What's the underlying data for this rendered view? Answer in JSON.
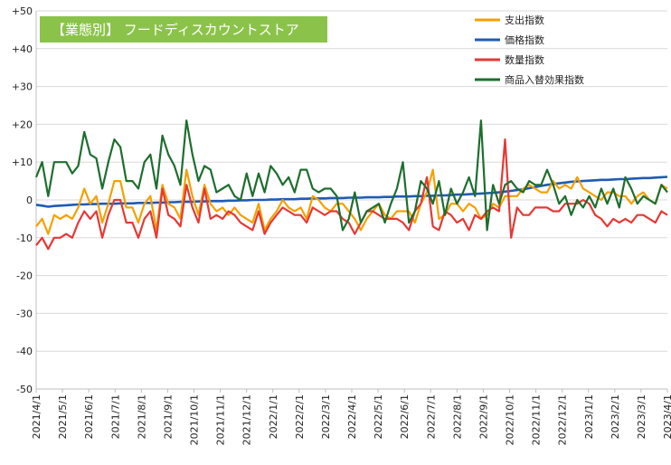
{
  "title_badge": {
    "text": "【業態別】 フードディスカウントストア",
    "bg_color": "#8BC34A",
    "text_color": "#ffffff"
  },
  "chart_data": {
    "type": "line",
    "title": "【業態別】 フードディスカウントストア",
    "ylim": [
      -50,
      50
    ],
    "y_ticks": [
      50,
      40,
      30,
      20,
      10,
      0,
      -10,
      -20,
      -30,
      -40,
      -50
    ],
    "y_tick_labels": [
      "+50",
      "+40",
      "+30",
      "+20",
      "+10",
      "0",
      "-10",
      "-20",
      "-30",
      "-40",
      "-50"
    ],
    "x_tick_labels": [
      "2021/4/1",
      "2021/5/1",
      "2021/6/1",
      "2021/7/1",
      "2021/8/1",
      "2021/9/1",
      "2021/10/1",
      "2021/11/1",
      "2021/12/1",
      "2022/1/1",
      "2022/2/1",
      "2022/3/1",
      "2022/4/1",
      "2022/5/1",
      "2022/6/1",
      "2022/7/1",
      "2022/8/1",
      "2022/9/1",
      "2022/10/1",
      "2022/11/1",
      "2022/12/1",
      "2023/1/1",
      "2023/2/1",
      "2023/3/1",
      "2023/4/1"
    ],
    "x_unit": "weekly, 2021-04 to 2023-04",
    "grid": true,
    "legend_position": "top-right",
    "series": [
      {
        "name": "支出指数",
        "color": "#F5A000",
        "values": [
          -7,
          -5,
          -9,
          -4,
          -5,
          -4,
          -5,
          -2,
          3,
          -1,
          1,
          -6,
          -1,
          5,
          5,
          -2,
          -2,
          -6,
          -1,
          1,
          -8,
          4,
          -1,
          -2,
          -5,
          8,
          1,
          -4,
          4,
          -1,
          -3,
          -2,
          -4,
          -2,
          -4,
          -5,
          -6,
          -1,
          -8,
          -5,
          -3,
          0,
          -2,
          -3,
          -2,
          -5,
          1,
          0,
          -2,
          -3,
          -1,
          -1,
          -3,
          -5,
          -8,
          -5,
          -3,
          -1,
          -4,
          -5,
          -3,
          -3,
          -3,
          -6,
          -1,
          2,
          8,
          -5,
          -4,
          -1,
          -1,
          -3,
          -1,
          -2,
          -5,
          -4,
          -1,
          -2,
          1,
          1,
          1,
          3,
          4,
          3,
          2,
          2,
          5,
          3,
          4,
          3,
          6,
          3,
          2,
          1,
          0,
          2,
          2,
          1,
          1,
          -1,
          1,
          2,
          0,
          -1,
          4,
          3
        ]
      },
      {
        "name": "価格指数",
        "color": "#1F5BB5",
        "values": [
          -1.3,
          -1.5,
          -1.8,
          -1.6,
          -1.5,
          -1.4,
          -1.3,
          -1.2,
          -1.2,
          -1.1,
          -1.1,
          -1.0,
          -1.0,
          -1.0,
          -0.9,
          -0.9,
          -0.9,
          -0.8,
          -0.8,
          -0.8,
          -0.7,
          -0.7,
          -0.6,
          -0.6,
          -0.5,
          -0.5,
          -0.5,
          -0.4,
          -0.4,
          -0.3,
          -0.3,
          -0.3,
          -0.2,
          -0.2,
          -0.1,
          -0.1,
          0.0,
          0.0,
          0.0,
          0.1,
          0.1,
          0.2,
          0.2,
          0.2,
          0.3,
          0.3,
          0.4,
          0.4,
          0.4,
          0.5,
          0.5,
          0.5,
          0.6,
          0.6,
          0.6,
          0.7,
          0.7,
          0.7,
          0.8,
          0.8,
          0.9,
          0.9,
          0.9,
          1.0,
          1.0,
          1.1,
          1.1,
          1.2,
          1.2,
          1.3,
          1.4,
          1.4,
          1.5,
          1.6,
          1.7,
          1.8,
          1.9,
          2.0,
          2.2,
          2.4,
          2.6,
          2.8,
          3.1,
          3.4,
          3.7,
          4.0,
          4.2,
          4.4,
          4.6,
          4.8,
          4.9,
          5.0,
          5.1,
          5.2,
          5.3,
          5.3,
          5.4,
          5.5,
          5.5,
          5.6,
          5.7,
          5.8,
          5.8,
          5.9,
          6.0,
          6.1
        ]
      },
      {
        "name": "数量指数",
        "color": "#E53935",
        "values": [
          -12,
          -10,
          -13,
          -10,
          -10,
          -9,
          -10,
          -6,
          -3,
          -5,
          -3,
          -10,
          -4,
          0,
          0,
          -6,
          -6,
          -10,
          -5,
          -3,
          -10,
          3,
          -4,
          -5,
          -7,
          4,
          -2,
          -6,
          3,
          -5,
          -4,
          -5,
          -3,
          -4,
          -6,
          -7,
          -8,
          -3,
          -9,
          -6,
          -4,
          -2,
          -3,
          -4,
          -4,
          -6,
          -2,
          -3,
          -4,
          -3,
          -3,
          -5,
          -6,
          -9,
          -6,
          -3,
          -3,
          -4,
          -5,
          -5,
          -5,
          -6,
          -8,
          -3,
          -1,
          6,
          -7,
          -8,
          -3,
          -4,
          -6,
          -5,
          -8,
          -4,
          -5,
          -3,
          -2,
          -3,
          16,
          -10,
          -2,
          -4,
          -4,
          -2,
          -2,
          -2,
          -3,
          -3,
          -1,
          -1,
          -1,
          0,
          -1,
          -4,
          -5,
          -7,
          -5,
          -6,
          -5,
          -6,
          -4,
          -4,
          -5,
          -6,
          -3,
          -4
        ]
      },
      {
        "name": "商品入替効果指数",
        "color": "#1E6E2E",
        "values": [
          6,
          10,
          1,
          10,
          10,
          10,
          7,
          9,
          18,
          12,
          11,
          3,
          10,
          16,
          14,
          5,
          5,
          3,
          10,
          12,
          3,
          17,
          12,
          9,
          4,
          21,
          12,
          5,
          9,
          8,
          2,
          3,
          4,
          1,
          0,
          7,
          1,
          7,
          2,
          9,
          7,
          4,
          6,
          2,
          8,
          8,
          3,
          2,
          3,
          3,
          1,
          -8,
          -5,
          2,
          -6,
          -3,
          -2,
          -1,
          -6,
          -1,
          3,
          10,
          -6,
          -3,
          5,
          3,
          -1,
          5,
          -4,
          3,
          -1,
          2,
          6,
          1,
          21,
          -8,
          4,
          -1,
          4,
          5,
          3,
          2,
          5,
          4,
          4,
          8,
          4,
          -1,
          1,
          -4,
          0,
          -2,
          1,
          -2,
          3,
          -1,
          3,
          -2,
          6,
          3,
          -1,
          1,
          0,
          -1,
          4,
          2
        ]
      }
    ]
  }
}
